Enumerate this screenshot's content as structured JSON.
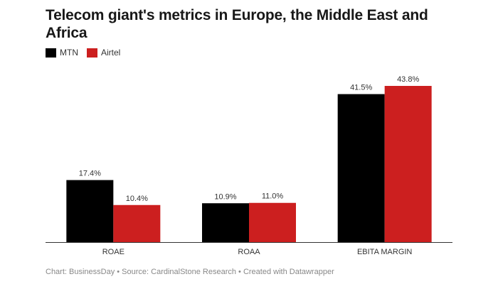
{
  "header": {
    "title": "Telecom giant's metrics in Europe, the Middle East and Africa"
  },
  "legend": [
    {
      "label": "MTN",
      "color": "#000000"
    },
    {
      "label": "Airtel",
      "color": "#cc1f1f"
    }
  ],
  "footer": {
    "credit": "Chart: BusinessDay • Source: CardinalStone Research • Created with Datawrapper"
  },
  "chart_data": {
    "type": "bar",
    "title": "Telecom giant's metrics in Europe, the Middle East and Africa",
    "xlabel": "",
    "ylabel": "",
    "categories": [
      "ROAE",
      "ROAA",
      "EBITA MARGIN"
    ],
    "series": [
      {
        "name": "MTN",
        "color": "#000000",
        "values": [
          17.4,
          10.9,
          41.5
        ],
        "labels": [
          "17.4%",
          "10.9%",
          "41.5%"
        ]
      },
      {
        "name": "Airtel",
        "color": "#cc1f1f",
        "values": [
          10.4,
          11.0,
          43.8
        ],
        "labels": [
          "10.4%",
          "11.0%",
          "43.8%"
        ]
      }
    ],
    "ylim": [
      0,
      43.8
    ],
    "grid": false,
    "legend_position": "top-left"
  }
}
